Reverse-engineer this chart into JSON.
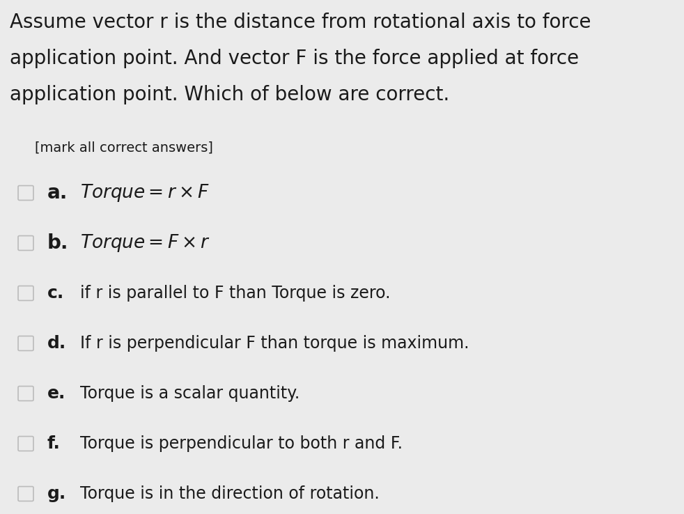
{
  "background_color": "#ebebeb",
  "title_lines": [
    "Assume vector r is the distance from rotational axis to force",
    "application point. And vector F is the force applied at force",
    "application point. Which of below are correct."
  ],
  "subtitle": "[mark all correct answers]",
  "options": [
    {
      "label": "a.",
      "text": "$\\mathit{Torque} = r \\times F$",
      "italic": true,
      "fontsize": 19
    },
    {
      "label": "b.",
      "text": "$\\mathit{Torque} = F \\times r$",
      "italic": true,
      "fontsize": 19
    },
    {
      "label": "c.",
      "text": "if r is parallel to F than Torque is zero.",
      "italic": false,
      "fontsize": 17
    },
    {
      "label": "d.",
      "text": "If r is perpendicular F than torque is maximum.",
      "italic": false,
      "fontsize": 17
    },
    {
      "label": "e.",
      "text": "Torque is a scalar quantity.",
      "italic": false,
      "fontsize": 17
    },
    {
      "label": "f.",
      "text": "Torque is perpendicular to both r and F.",
      "italic": false,
      "fontsize": 17
    },
    {
      "label": "g.",
      "text": "Torque is in the direction of rotation.",
      "italic": false,
      "fontsize": 17
    }
  ],
  "title_fontsize": 20,
  "subtitle_fontsize": 14,
  "label_fontsize_large": 20,
  "label_fontsize_small": 18,
  "text_color": "#1a1a1a",
  "checkbox_edge_color": "#bbbbbb"
}
